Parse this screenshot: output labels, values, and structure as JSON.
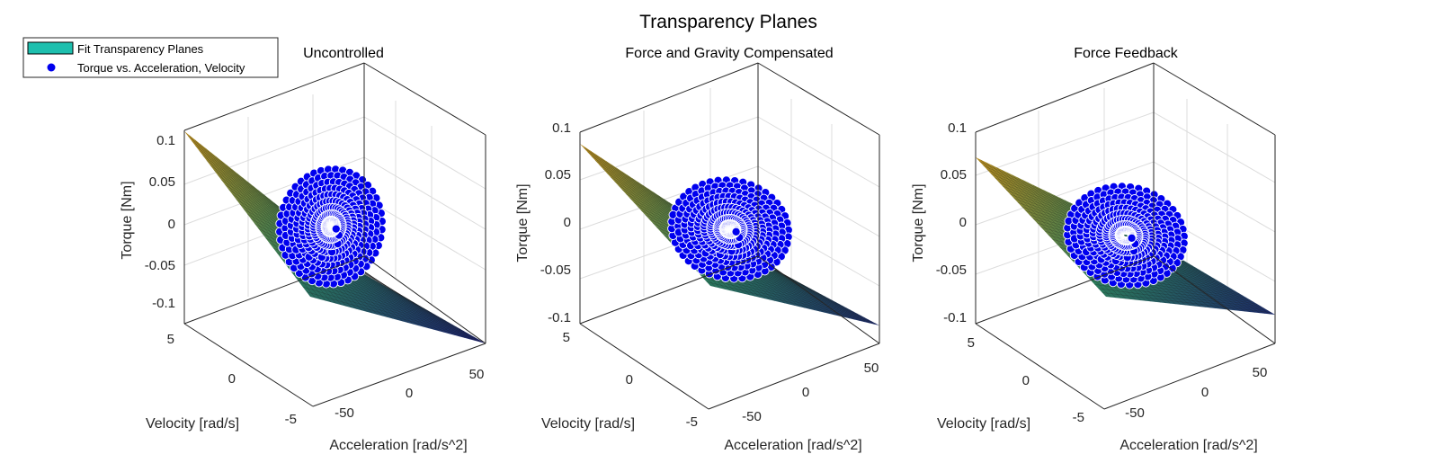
{
  "figure_title": "Transparency Planes",
  "legend": {
    "surface_label": "Fit Transparency Planes",
    "points_label": "Torque vs. Acceleration, Velocity",
    "surface_color": "#1ebfae",
    "points_color": "#0000ee"
  },
  "chart_data": [
    {
      "type": "scatter3d",
      "title": "Uncontrolled",
      "xlabel": "Acceleration [rad/s^2]",
      "ylabel": "Velocity [rad/s]",
      "zlabel": "Torque [Nm]",
      "xlim": [
        -80,
        80
      ],
      "ylim": [
        -7,
        7
      ],
      "zlim": [
        -0.13,
        0.13
      ],
      "xticks": [
        "-50",
        "0",
        "50"
      ],
      "yticks": [
        "5",
        "0",
        "-5"
      ],
      "zticks": [
        "0.1",
        "0.05",
        "0",
        "-0.05",
        "-0.1"
      ],
      "plane_corner_torque": [
        0.12,
        -0.13
      ],
      "grid": true
    },
    {
      "type": "scatter3d",
      "title": "Force and Gravity Compensated",
      "xlabel": "Acceleration [rad/s^2]",
      "ylabel": "Velocity [rad/s]",
      "zlabel": "Torque [Nm]",
      "xlim": [
        -80,
        80
      ],
      "ylim": [
        -7,
        7
      ],
      "zlim": [
        -0.1,
        0.1
      ],
      "xticks": [
        "-50",
        "0",
        "50"
      ],
      "yticks": [
        "5",
        "0",
        "-5"
      ],
      "zticks": [
        "0.1",
        "0.05",
        "0",
        "-0.05",
        "-0.1"
      ],
      "plane_corner_torque": [
        0.09,
        -0.1
      ],
      "grid": true
    },
    {
      "type": "scatter3d",
      "title": "Force Feedback",
      "xlabel": "Acceleration [rad/s^2]",
      "ylabel": "Velocity [rad/s]",
      "zlabel": "Torque [Nm]",
      "xlim": [
        -80,
        80
      ],
      "ylim": [
        -7,
        7
      ],
      "zlim": [
        -0.1,
        0.1
      ],
      "xticks": [
        "-50",
        "0",
        "50"
      ],
      "yticks": [
        "5",
        "0",
        "-5"
      ],
      "zticks": [
        "0.1",
        "0.05",
        "0",
        "-0.05",
        "-0.1"
      ],
      "plane_corner_torque": [
        0.07,
        -0.1
      ],
      "grid": true
    }
  ]
}
